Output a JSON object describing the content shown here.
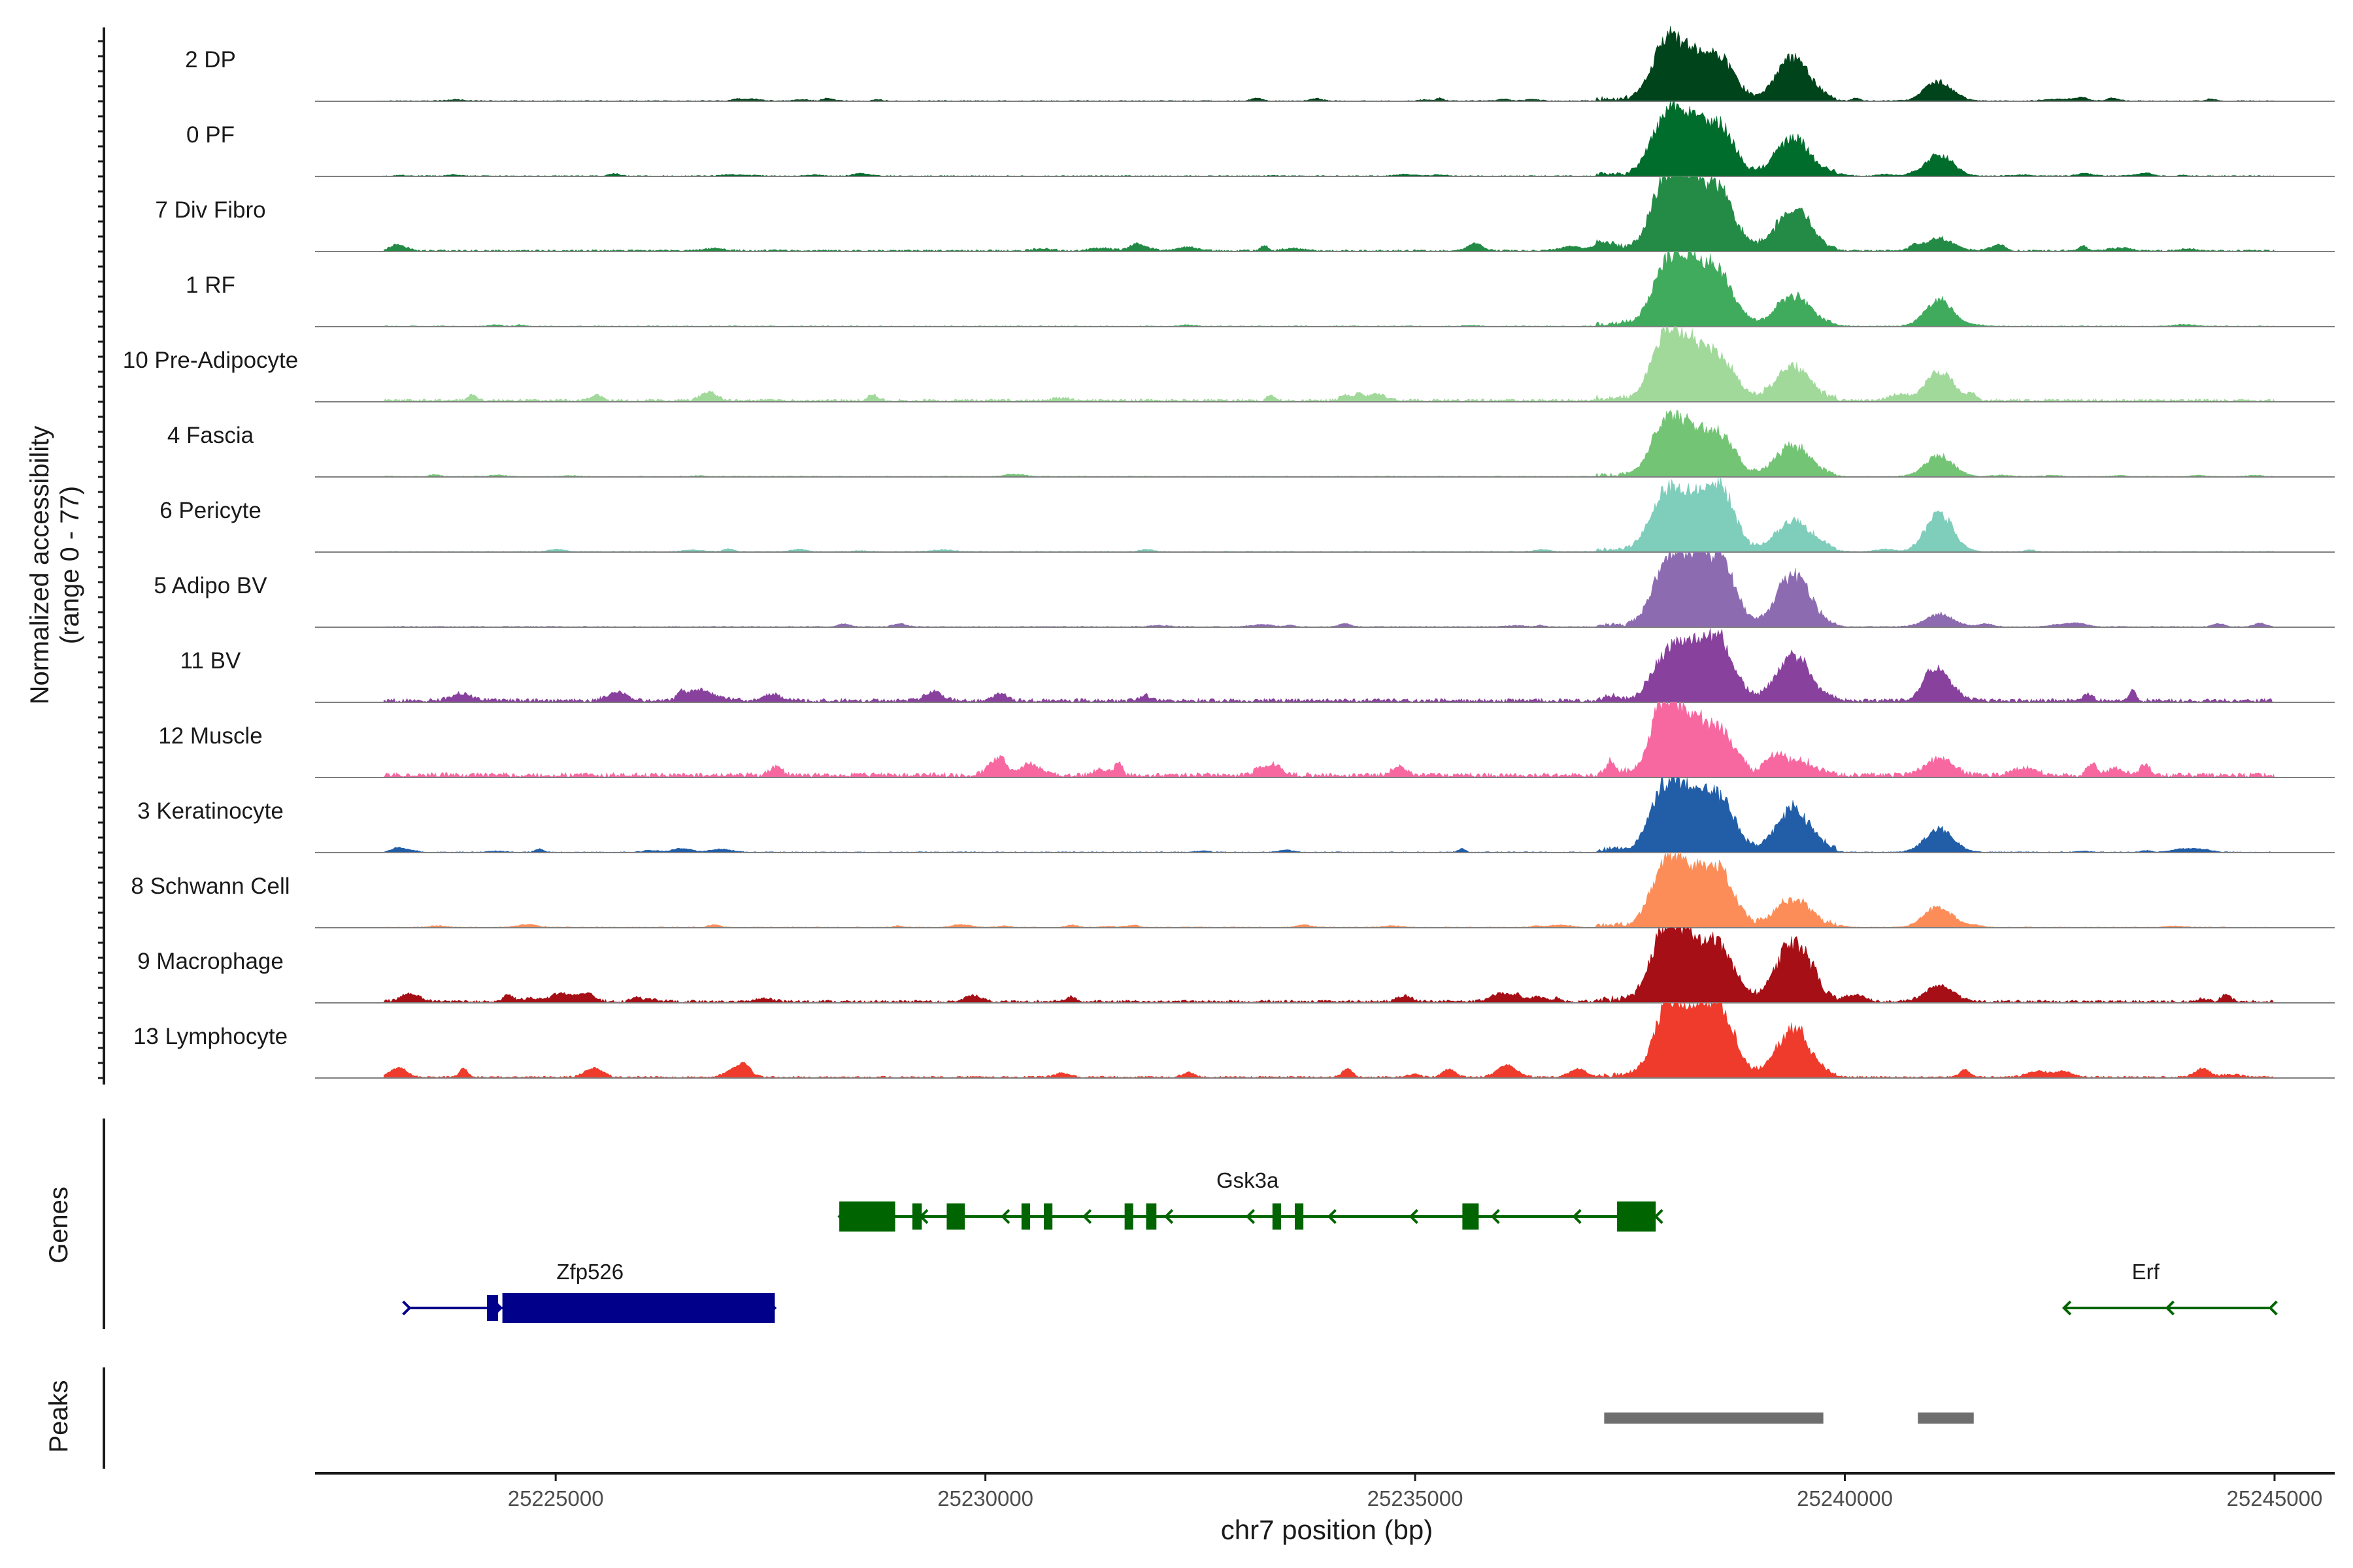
{
  "chart_data": {
    "type": "area",
    "title": "",
    "ylabel_line1": "Normalized accessibility",
    "ylabel_line2": "(range 0 - 77)",
    "xlabel": "chr7 position (bp)",
    "xlim": [
      25222200,
      25245700
    ],
    "ylim": [
      0,
      77
    ],
    "xticks": [
      25225000,
      25230000,
      25235000,
      25240000,
      25245000
    ],
    "xtick_labels": [
      "25225000",
      "25230000",
      "25235000",
      "25240000",
      "25245000"
    ],
    "section_labels": {
      "genes": "Genes",
      "peaks": "Peaks"
    },
    "main_peaks": [
      {
        "center": 25237900,
        "width": 160
      },
      {
        "center": 25238200,
        "width": 170
      },
      {
        "center": 25238550,
        "width": 170
      },
      {
        "center": 25239400,
        "width": 190
      },
      {
        "center": 25241100,
        "width": 160
      }
    ],
    "tracks": [
      {
        "name": "2 DP",
        "color": "#00441b",
        "start": 25223000,
        "end": 25245000,
        "peaks": [
          60,
          48,
          45,
          47,
          22
        ],
        "bg": [
          3,
          1
        ]
      },
      {
        "name": "0 PF",
        "color": "#006d2c",
        "start": 25223000,
        "end": 25245000,
        "peaks": [
          62,
          55,
          52,
          43,
          25
        ],
        "bg": [
          2,
          1
        ]
      },
      {
        "name": "7 Div Fibro",
        "color": "#238b45",
        "start": 25223000,
        "end": 25245000,
        "peaks": [
          72,
          70,
          65,
          48,
          15
        ],
        "bg": [
          6,
          2
        ]
      },
      {
        "name": "1 RF",
        "color": "#41ab5d",
        "start": 25223000,
        "end": 25245000,
        "peaks": [
          58,
          70,
          55,
          35,
          30
        ],
        "bg": [
          2,
          1
        ]
      },
      {
        "name": "10 Pre-Adipocyte",
        "color": "#a1d99b",
        "start": 25223000,
        "end": 25245000,
        "peaks": [
          65,
          58,
          45,
          38,
          35
        ],
        "bg": [
          9,
          3
        ]
      },
      {
        "name": "4 Fascia",
        "color": "#74c476",
        "start": 25223000,
        "end": 25245000,
        "peaks": [
          55,
          48,
          45,
          35,
          25
        ],
        "bg": [
          2,
          1
        ]
      },
      {
        "name": "6 Pericyte",
        "color": "#7fcdbb",
        "start": 25223000,
        "end": 25245000,
        "peaks": [
          58,
          55,
          70,
          35,
          45
        ],
        "bg": [
          3,
          1
        ]
      },
      {
        "name": "5 Adipo BV",
        "color": "#8c6bb1",
        "start": 25223000,
        "end": 25245000,
        "peaks": [
          60,
          70,
          72,
          60,
          15
        ],
        "bg": [
          4,
          1
        ]
      },
      {
        "name": "11 BV",
        "color": "#88419d",
        "start": 25223000,
        "end": 25245000,
        "peaks": [
          45,
          55,
          60,
          52,
          30
        ],
        "bg": [
          12,
          4
        ]
      },
      {
        "name": "12 Muscle",
        "color": "#f768a1",
        "start": 25223000,
        "end": 25245000,
        "peaks": [
          75,
          55,
          48,
          15,
          20
        ],
        "bg": [
          14,
          5
        ]
      },
      {
        "name": "3 Keratinocyte",
        "color": "#225ea8",
        "start": 25223000,
        "end": 25245000,
        "peaks": [
          68,
          58,
          58,
          48,
          28
        ],
        "bg": [
          4,
          1
        ]
      },
      {
        "name": "8 Schwann Cell",
        "color": "#fc8d59",
        "start": 25223000,
        "end": 25245000,
        "peaks": [
          68,
          58,
          60,
          32,
          22
        ],
        "bg": [
          3,
          1
        ]
      },
      {
        "name": "9 Macrophage",
        "color": "#a50f15",
        "start": 25223000,
        "end": 25245000,
        "peaks": [
          75,
          60,
          58,
          68,
          18
        ],
        "bg": [
          9,
          3
        ]
      },
      {
        "name": "13 Lymphocyte",
        "color": "#ef3b2c",
        "start": 25223000,
        "end": 25245000,
        "peaks": [
          58,
          68,
          76,
          55,
          0
        ],
        "bg": [
          10,
          2
        ]
      }
    ],
    "genes": [
      {
        "name": "Gsk3a",
        "color": "#006400",
        "row": 0,
        "start": 25228300,
        "end": 25237800,
        "strand": "-",
        "exons": [
          [
            25228300,
            25228950
          ],
          [
            25229150,
            25229260
          ],
          [
            25229550,
            25229760
          ],
          [
            25230420,
            25230520
          ],
          [
            25230680,
            25230780
          ],
          [
            25231620,
            25231720
          ],
          [
            25231870,
            25231990
          ],
          [
            25233340,
            25233440
          ],
          [
            25233600,
            25233700
          ],
          [
            25235550,
            25235740
          ],
          [
            25237350,
            25237800
          ]
        ],
        "utr": [
          [
            25228300,
            25228950
          ],
          [
            25237350,
            25237800
          ]
        ]
      },
      {
        "name": "Zfp526",
        "color": "#00008b",
        "row": 1,
        "start": 25223300,
        "end": 25227550,
        "strand": "+",
        "exons": [
          [
            25224200,
            25224330
          ],
          [
            25224380,
            25227550
          ]
        ],
        "utr": [
          [
            25224380,
            25227550
          ]
        ]
      },
      {
        "name": "Erf",
        "color": "#006400",
        "row": 1,
        "start": 25242550,
        "end": 25244950,
        "strand": "-",
        "exons": [],
        "utr": []
      }
    ],
    "peaks_track": [
      [
        25237200,
        25239750
      ],
      [
        25240850,
        25241500
      ]
    ]
  }
}
